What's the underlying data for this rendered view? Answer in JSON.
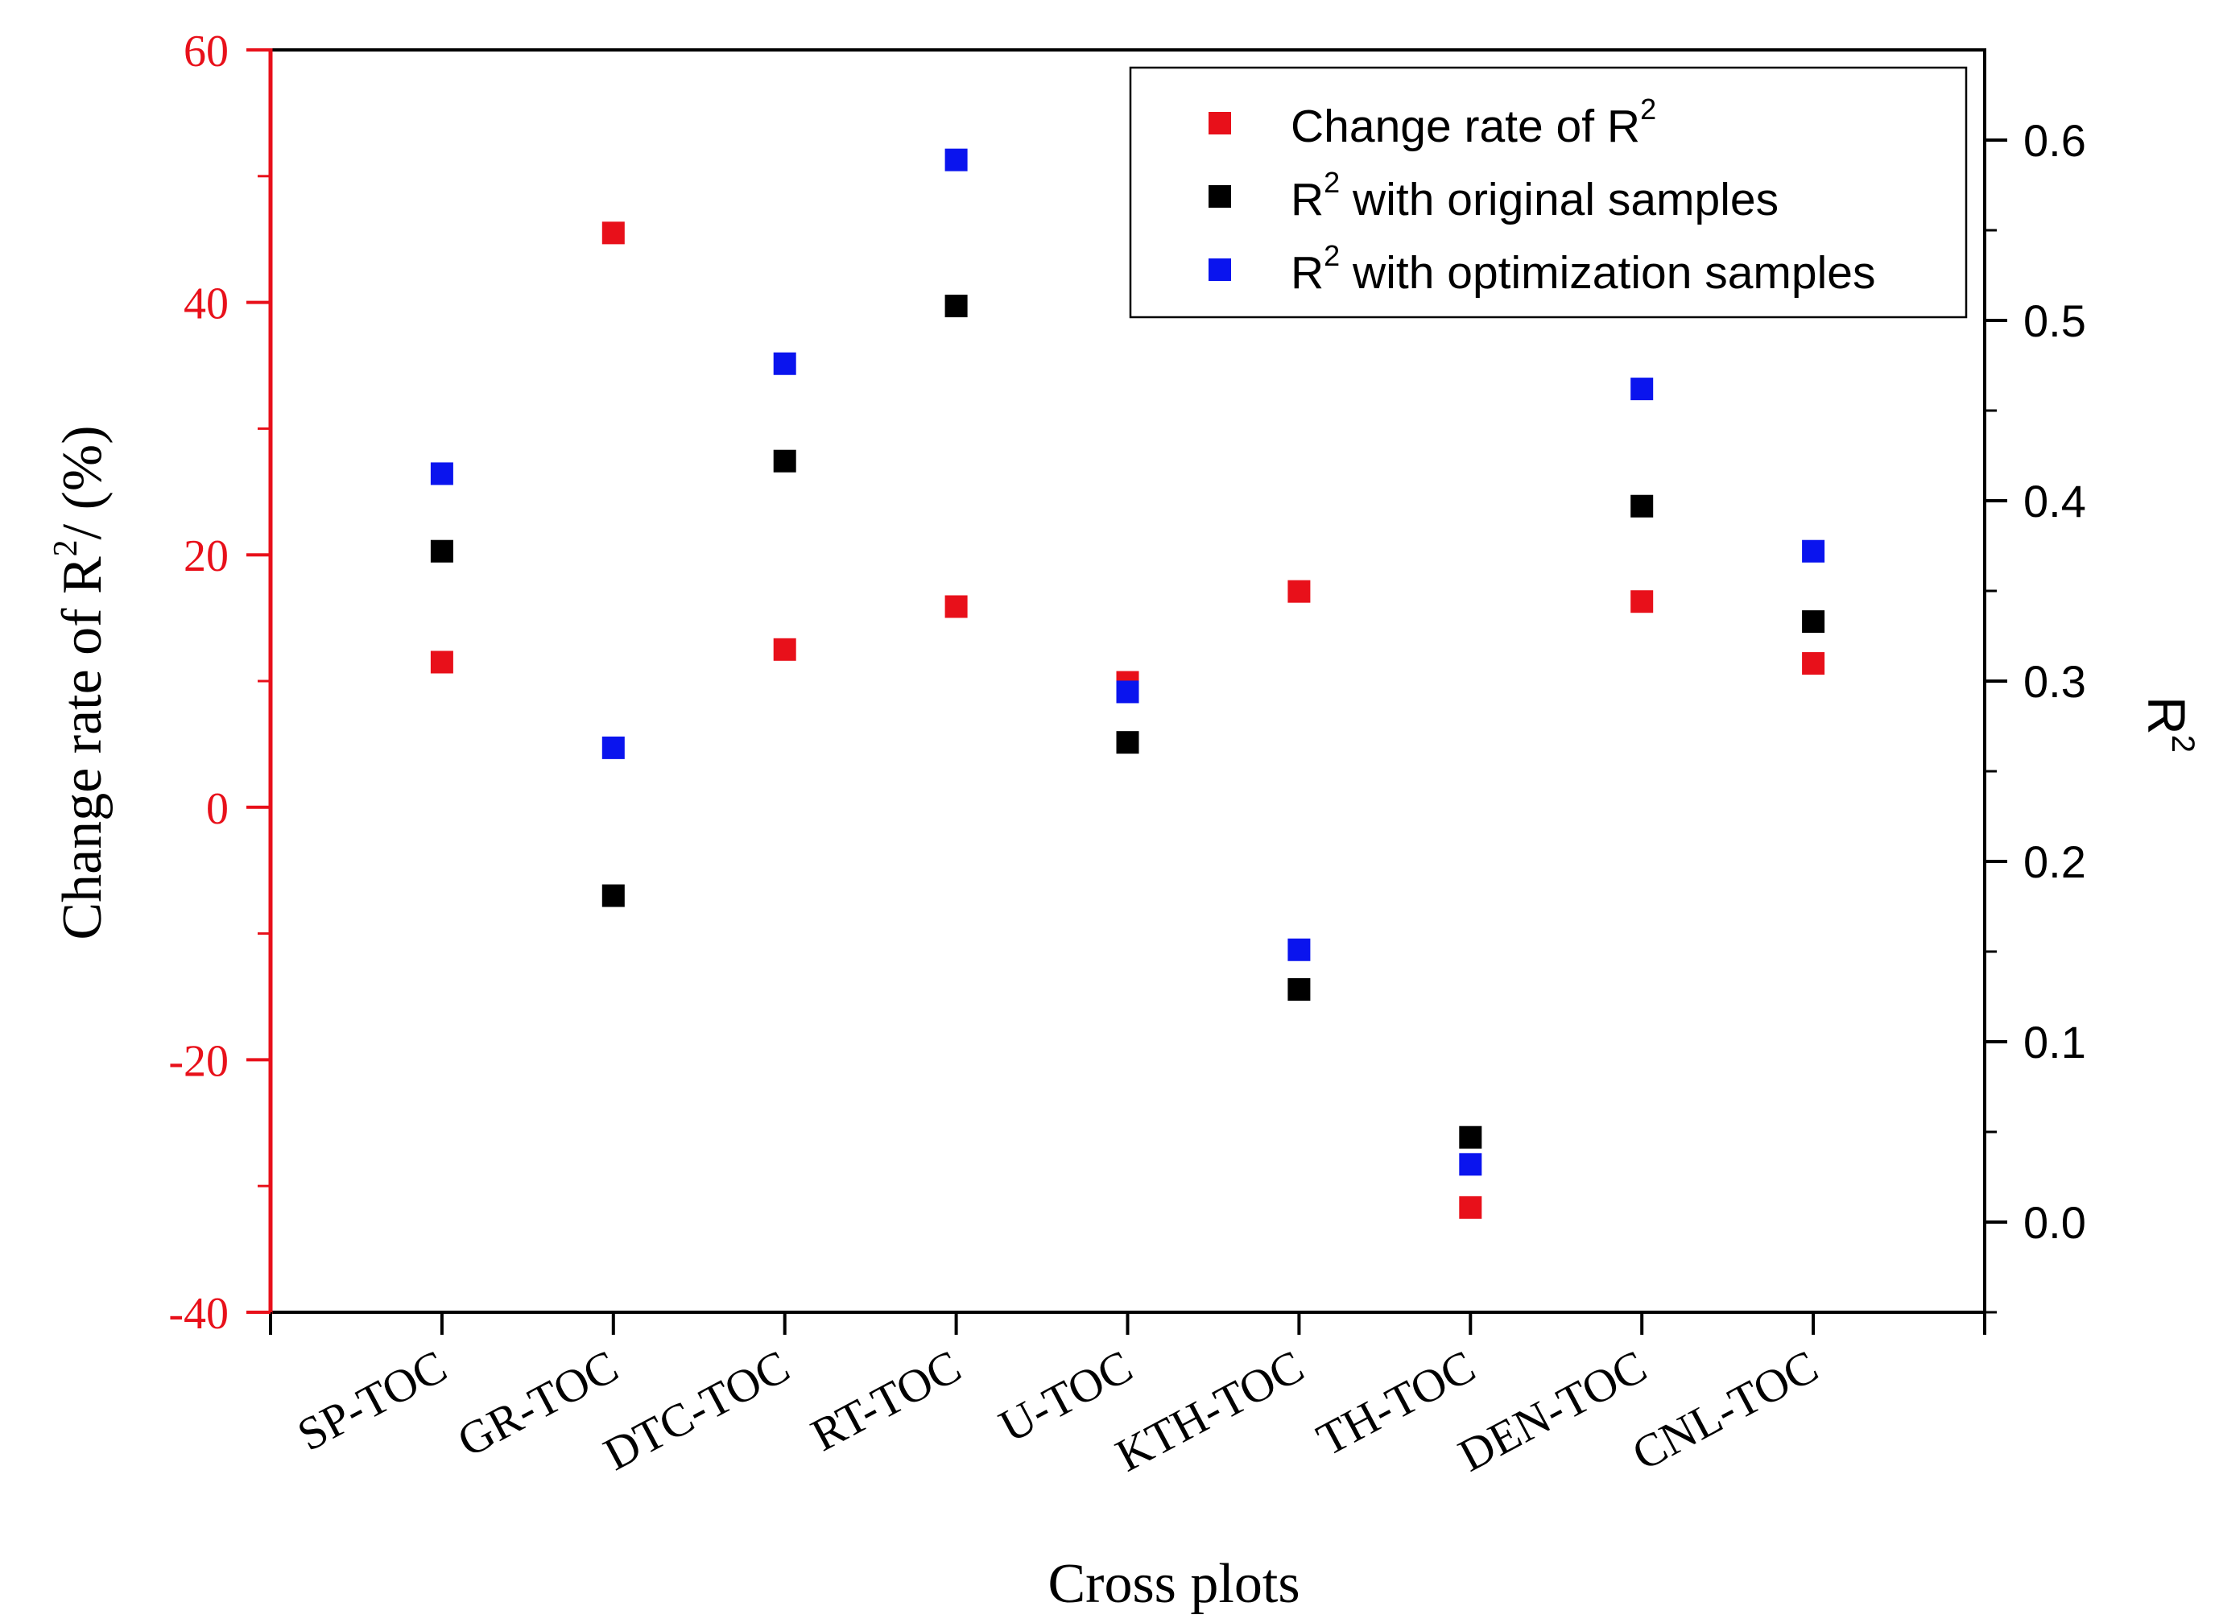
{
  "chart_data": {
    "type": "scatter",
    "title": "",
    "xlabel": "Cross plots",
    "ylabel_left": {
      "text": "Change rate of R",
      "sup": "2",
      "suffix": "/ (%)"
    },
    "ylabel_right": {
      "text": "R",
      "sup": "2"
    },
    "categories": [
      "SP-TOC",
      "GR-TOC",
      "DTC-TOC",
      "RT-TOC",
      "U-TOC",
      "KTH-TOC",
      "TH-TOC",
      "DEN-TOC",
      "CNL-TOC"
    ],
    "y_left": {
      "lim": [
        -40,
        60
      ],
      "ticks": [
        "-40",
        "-20",
        "0",
        "20",
        "40",
        "60"
      ],
      "color": "#e8101a"
    },
    "y_right": {
      "lim": [
        -0.05,
        0.65
      ],
      "ticks": [
        "0.0",
        "0.1",
        "0.2",
        "0.3",
        "0.4",
        "0.5",
        "0.6"
      ]
    },
    "grid": false,
    "legend_position": "top-right",
    "series": [
      {
        "name": "Change rate of R2",
        "legend_text": "Change rate of R",
        "legend_sup": "2",
        "legend_suffix": "",
        "axis": "left",
        "color": "#e8101a",
        "values": [
          11.5,
          45.5,
          12.5,
          15.9,
          9.9,
          17.1,
          -31.7,
          16.3,
          11.4
        ]
      },
      {
        "name": "R2 with original samples",
        "legend_text": "R",
        "legend_sup": "2",
        "legend_suffix": " with original samples",
        "axis": "right",
        "color": "#000000",
        "values": [
          0.372,
          0.181,
          0.422,
          0.508,
          0.266,
          0.129,
          0.047,
          0.397,
          0.333
        ]
      },
      {
        "name": "R2 with optimization samples",
        "legend_text": "R",
        "legend_sup": "2",
        "legend_suffix": " with optimization samples",
        "axis": "right",
        "color": "#0a14ee",
        "values": [
          0.415,
          0.263,
          0.476,
          0.589,
          0.294,
          0.151,
          0.032,
          0.462,
          0.372
        ]
      }
    ]
  }
}
